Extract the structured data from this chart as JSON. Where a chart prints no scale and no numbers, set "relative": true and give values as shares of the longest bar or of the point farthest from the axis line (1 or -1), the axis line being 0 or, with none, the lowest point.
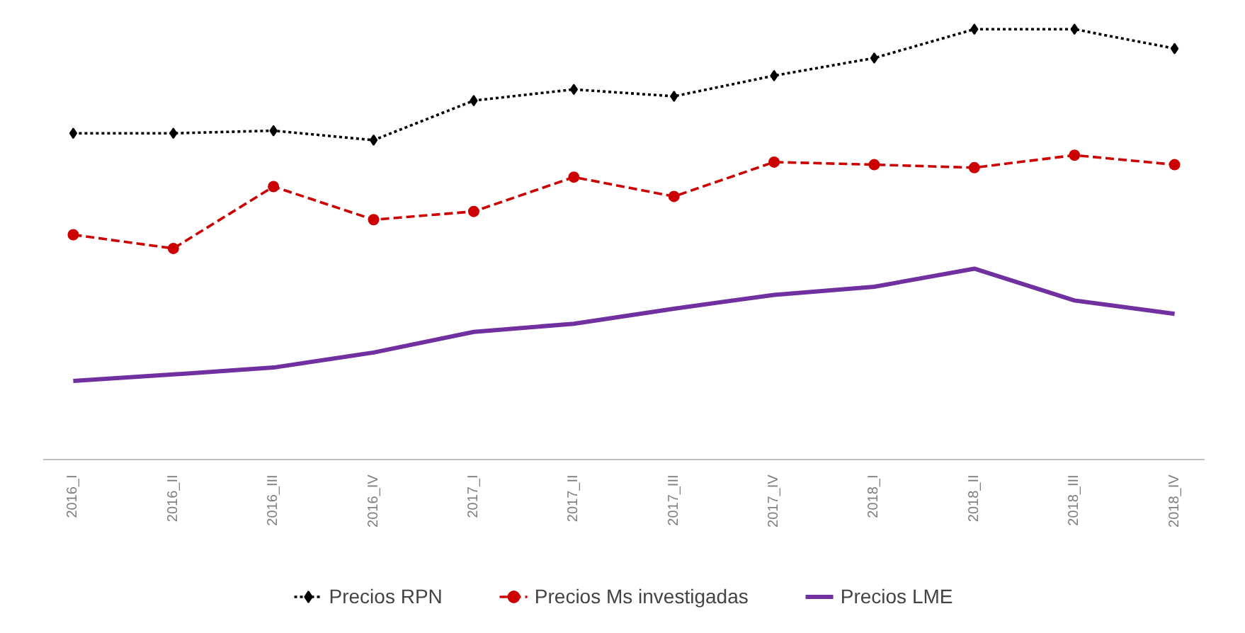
{
  "chart_data": {
    "type": "line",
    "relative": true,
    "grid": false,
    "legend": "bottom",
    "categories": [
      "2016_I",
      "2016_II",
      "2016_III",
      "2016_IV",
      "2017_I",
      "2017_II",
      "2017_III",
      "2017_IV",
      "2018_I",
      "2018_II",
      "2018_III",
      "2018_IV"
    ],
    "series": [
      {
        "name": "Precios RPN",
        "color": "#000000",
        "marker": "diamond",
        "line_style": "dotted",
        "values": [
          0.758,
          0.758,
          0.764,
          0.742,
          0.834,
          0.86,
          0.844,
          0.892,
          0.933,
          1,
          1,
          0.955
        ]
      },
      {
        "name": "Precios Ms investigadas",
        "color": "#cc0000",
        "marker": "circle",
        "line_style": "dashed",
        "values": [
          0.522,
          0.49,
          0.634,
          0.557,
          0.576,
          0.656,
          0.611,
          0.691,
          0.685,
          0.678,
          0.707,
          0.685
        ]
      },
      {
        "name": "Precios LME",
        "color": "#7030a0",
        "marker": "none",
        "line_style": "solid",
        "values": [
          0.182,
          0.197,
          0.213,
          0.248,
          0.296,
          0.315,
          0.35,
          0.382,
          0.401,
          0.443,
          0.369,
          0.338
        ]
      }
    ]
  }
}
